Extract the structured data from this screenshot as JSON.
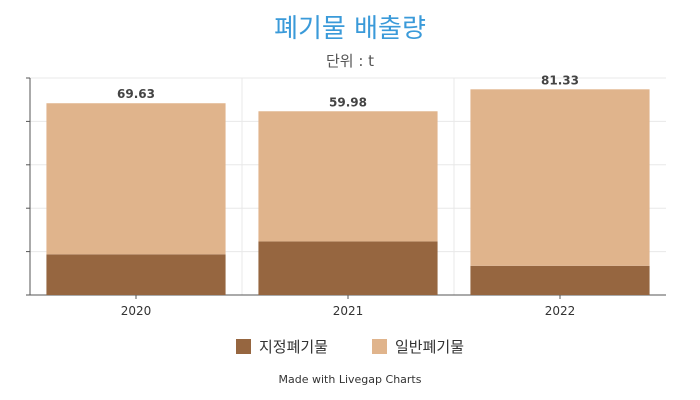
{
  "title": "폐기물 배출량",
  "subtitle": "단위 : t",
  "credit": "Made with Livegap Charts",
  "colors": {
    "title": "#3a9ad9",
    "series1": "#966640",
    "series2": "#e0b48c",
    "grid": "#e8e8e8",
    "axis": "#555555"
  },
  "chart_data": {
    "type": "bar",
    "stacked": true,
    "categories": [
      "2020",
      "2021",
      "2022"
    ],
    "series": [
      {
        "name": "지정폐기물",
        "values": [
          18.74,
          24.69,
          13.46
        ]
      },
      {
        "name": "일반폐기물",
        "values": [
          69.63,
          59.98,
          81.33
        ]
      }
    ],
    "ylim": [
      0,
      100
    ],
    "grid": true,
    "legend": "bottom"
  }
}
